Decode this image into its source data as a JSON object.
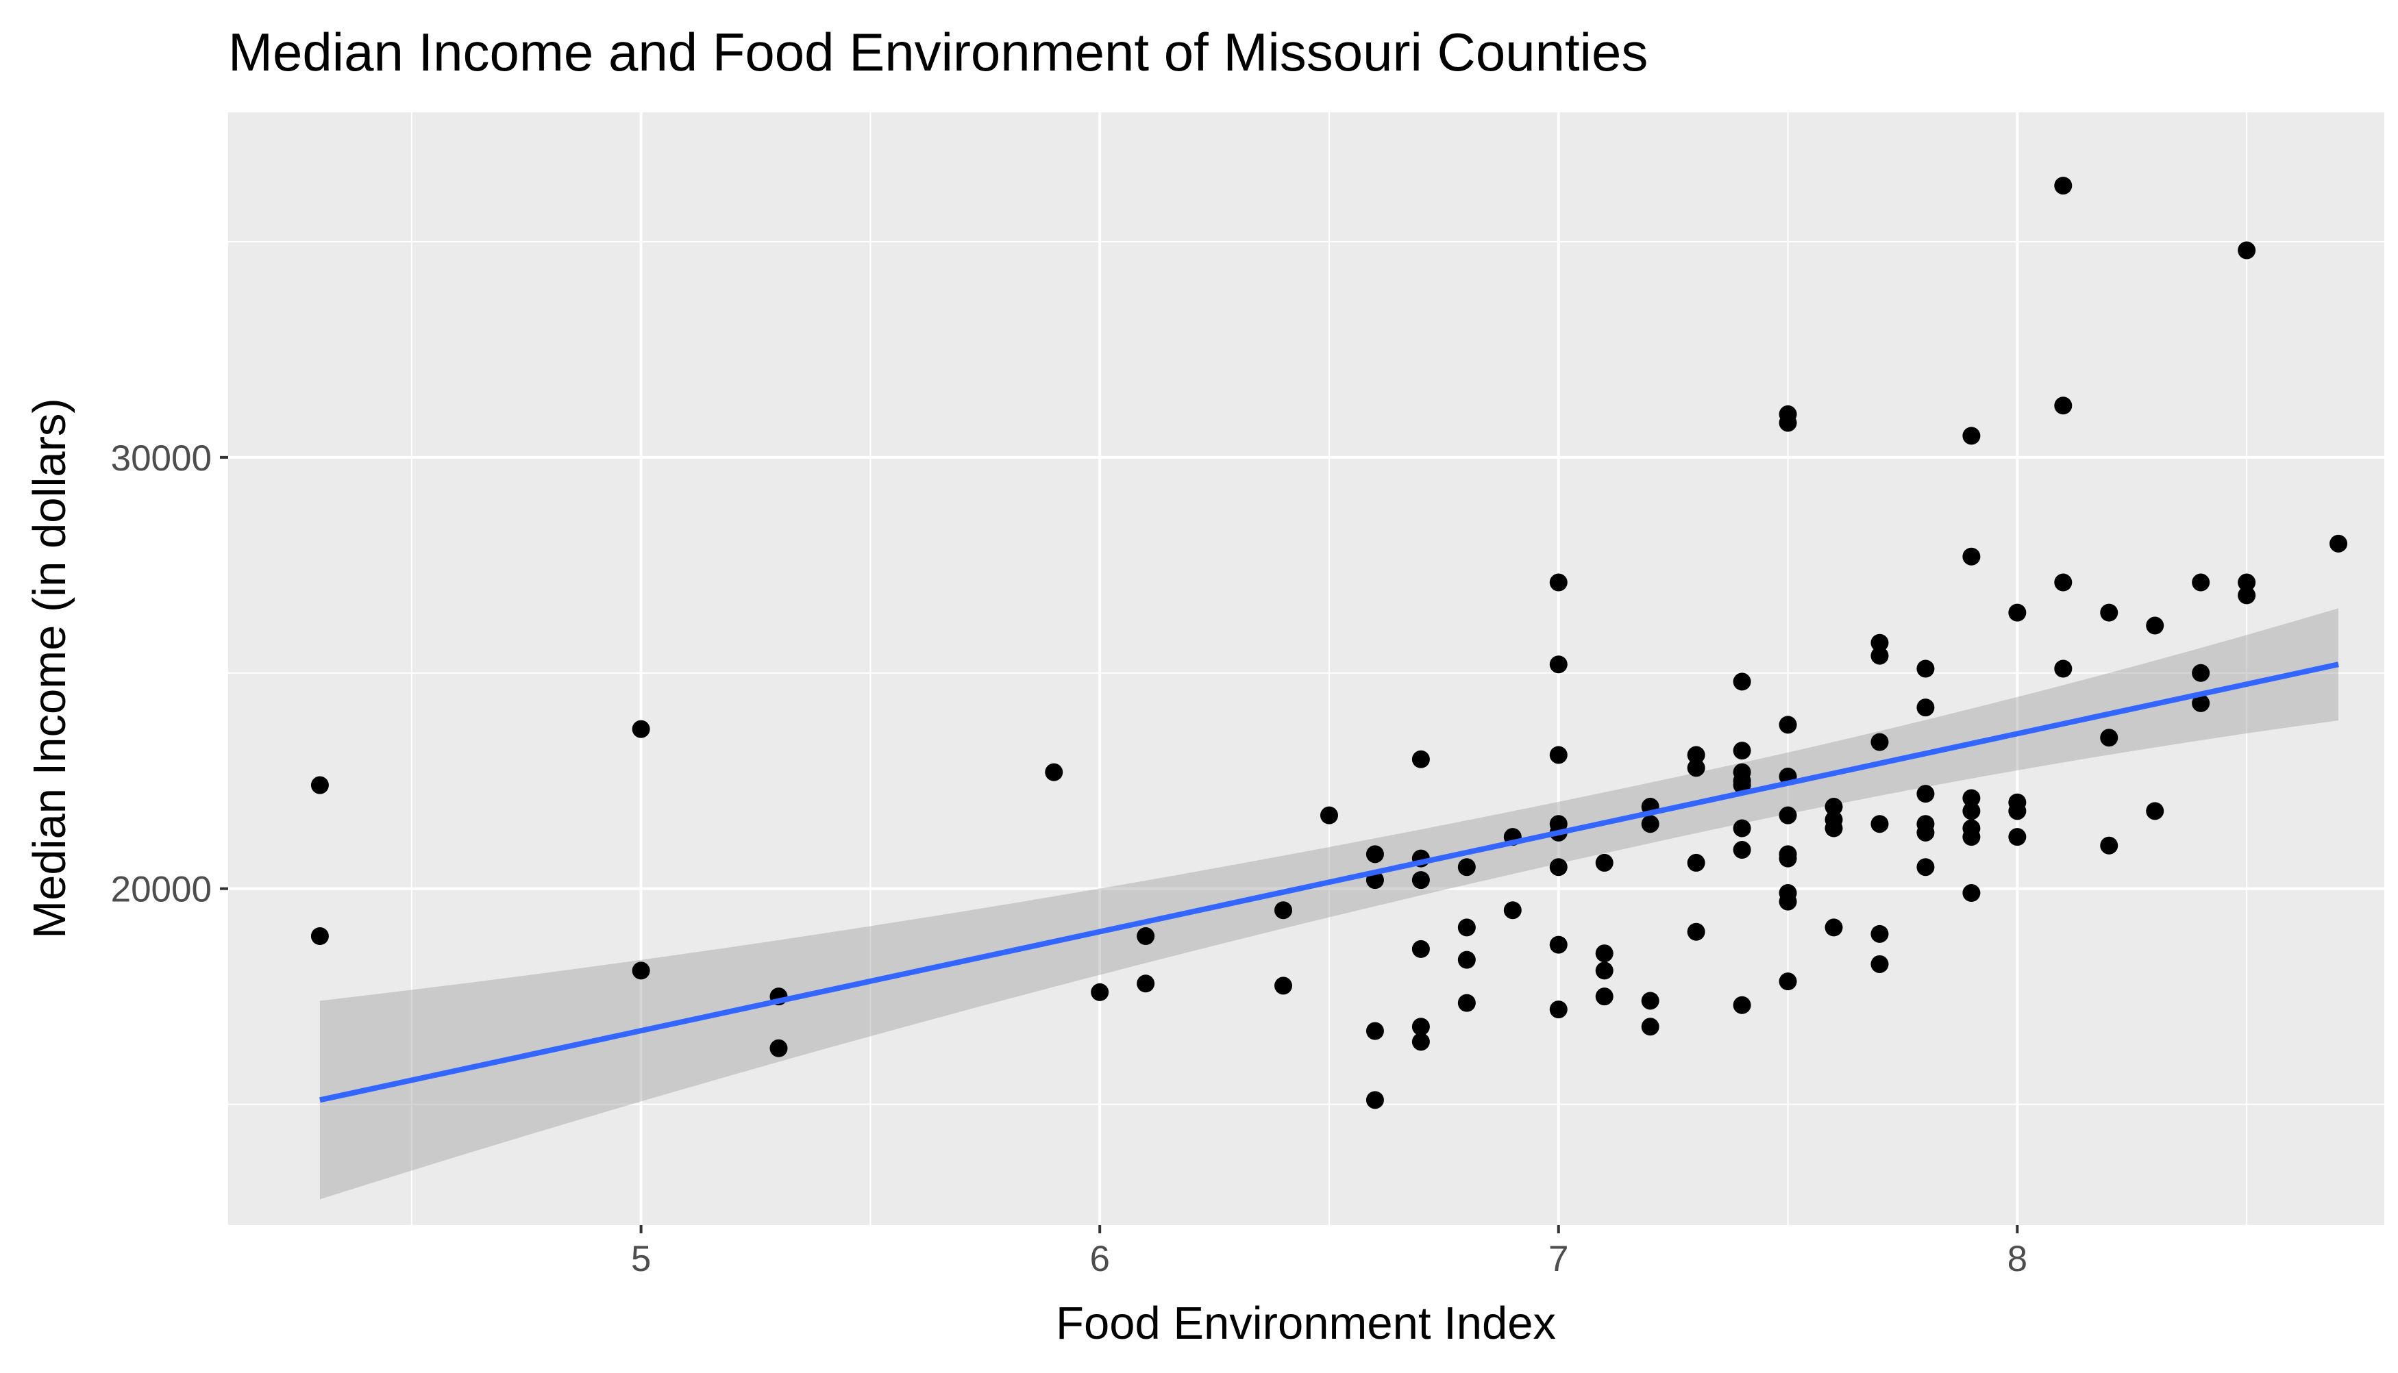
{
  "chart_data": {
    "type": "scatter",
    "title": "Median Income and Food Environment of Missouri Counties",
    "xlabel": "Food Environment Index",
    "ylabel": "Median Income (in dollars)",
    "xlim": [
      4.1,
      8.8
    ],
    "ylim": [
      12200,
      38000
    ],
    "x_ticks": [
      5,
      6,
      7,
      8
    ],
    "x_tick_labels": [
      "5",
      "6",
      "7",
      "8"
    ],
    "x_minor_ticks": [
      4.5,
      5.5,
      6.5,
      7.5,
      8.5
    ],
    "y_ticks": [
      20000,
      30000
    ],
    "y_tick_labels": [
      "20000",
      "30000"
    ],
    "y_minor_ticks": [
      15000,
      25000,
      35000
    ],
    "grid": true,
    "legend": "none",
    "colors": {
      "panel": "#EBEBEB",
      "grid": "#FFFFFF",
      "points": "#000000",
      "fit_line": "#3366FF",
      "ribbon": "#999999"
    },
    "points": [
      [
        4.3,
        22400
      ],
      [
        4.3,
        18900
      ],
      [
        5.0,
        23700
      ],
      [
        5.0,
        18100
      ],
      [
        5.3,
        17500
      ],
      [
        5.3,
        16300
      ],
      [
        5.9,
        22700
      ],
      [
        6.0,
        17600
      ],
      [
        6.1,
        18900
      ],
      [
        6.1,
        17800
      ],
      [
        6.4,
        19500
      ],
      [
        6.4,
        17750
      ],
      [
        6.5,
        21700
      ],
      [
        6.6,
        20800
      ],
      [
        6.6,
        20200
      ],
      [
        6.6,
        16700
      ],
      [
        6.6,
        15100
      ],
      [
        6.7,
        23000
      ],
      [
        6.7,
        20700
      ],
      [
        6.7,
        20200
      ],
      [
        6.7,
        18600
      ],
      [
        6.7,
        16800
      ],
      [
        6.7,
        16450
      ],
      [
        6.8,
        20500
      ],
      [
        6.8,
        19100
      ],
      [
        6.8,
        18350
      ],
      [
        6.8,
        17350
      ],
      [
        6.9,
        21200
      ],
      [
        6.9,
        19500
      ],
      [
        7.0,
        27100
      ],
      [
        7.0,
        25200
      ],
      [
        7.0,
        23100
      ],
      [
        7.0,
        21500
      ],
      [
        7.0,
        21300
      ],
      [
        7.0,
        20500
      ],
      [
        7.0,
        18700
      ],
      [
        7.0,
        17200
      ],
      [
        7.1,
        20600
      ],
      [
        7.1,
        18500
      ],
      [
        7.1,
        18100
      ],
      [
        7.1,
        17500
      ],
      [
        7.2,
        21900
      ],
      [
        7.2,
        21500
      ],
      [
        7.2,
        17400
      ],
      [
        7.2,
        16800
      ],
      [
        7.3,
        23100
      ],
      [
        7.3,
        22800
      ],
      [
        7.3,
        20600
      ],
      [
        7.3,
        19000
      ],
      [
        7.4,
        24800
      ],
      [
        7.4,
        23200
      ],
      [
        7.4,
        22700
      ],
      [
        7.4,
        22500
      ],
      [
        7.4,
        22400
      ],
      [
        7.4,
        21400
      ],
      [
        7.4,
        20900
      ],
      [
        7.4,
        17300
      ],
      [
        7.5,
        31000
      ],
      [
        7.5,
        30800
      ],
      [
        7.5,
        23800
      ],
      [
        7.5,
        22600
      ],
      [
        7.5,
        21700
      ],
      [
        7.5,
        20800
      ],
      [
        7.5,
        20700
      ],
      [
        7.5,
        19900
      ],
      [
        7.5,
        19700
      ],
      [
        7.5,
        17850
      ],
      [
        7.6,
        21900
      ],
      [
        7.6,
        21600
      ],
      [
        7.6,
        21400
      ],
      [
        7.6,
        19100
      ],
      [
        7.7,
        25700
      ],
      [
        7.7,
        25400
      ],
      [
        7.7,
        23400
      ],
      [
        7.7,
        21500
      ],
      [
        7.7,
        18950
      ],
      [
        7.7,
        18250
      ],
      [
        7.8,
        25100
      ],
      [
        7.8,
        24200
      ],
      [
        7.8,
        22200
      ],
      [
        7.8,
        21500
      ],
      [
        7.8,
        21300
      ],
      [
        7.8,
        20500
      ],
      [
        7.9,
        30500
      ],
      [
        7.9,
        27700
      ],
      [
        7.9,
        22100
      ],
      [
        7.9,
        21800
      ],
      [
        7.9,
        21400
      ],
      [
        7.9,
        21200
      ],
      [
        7.9,
        19900
      ],
      [
        8.0,
        26400
      ],
      [
        8.0,
        22000
      ],
      [
        8.0,
        21800
      ],
      [
        8.0,
        21200
      ],
      [
        8.1,
        36300
      ],
      [
        8.1,
        31200
      ],
      [
        8.1,
        27100
      ],
      [
        8.1,
        25100
      ],
      [
        8.2,
        26400
      ],
      [
        8.2,
        23500
      ],
      [
        8.2,
        21000
      ],
      [
        8.3,
        26100
      ],
      [
        8.3,
        21800
      ],
      [
        8.4,
        27100
      ],
      [
        8.4,
        25000
      ],
      [
        8.4,
        24300
      ],
      [
        8.5,
        34800
      ],
      [
        8.5,
        27100
      ],
      [
        8.5,
        26800
      ],
      [
        8.7,
        28000
      ]
    ],
    "fit_line": {
      "x": [
        4.3,
        8.7
      ],
      "y": [
        15100,
        25200
      ]
    },
    "confidence_band": {
      "x": [
        4.3,
        8.7
      ],
      "upper": [
        17400,
        26500
      ],
      "lower": [
        12900,
        24000
      ]
    }
  }
}
